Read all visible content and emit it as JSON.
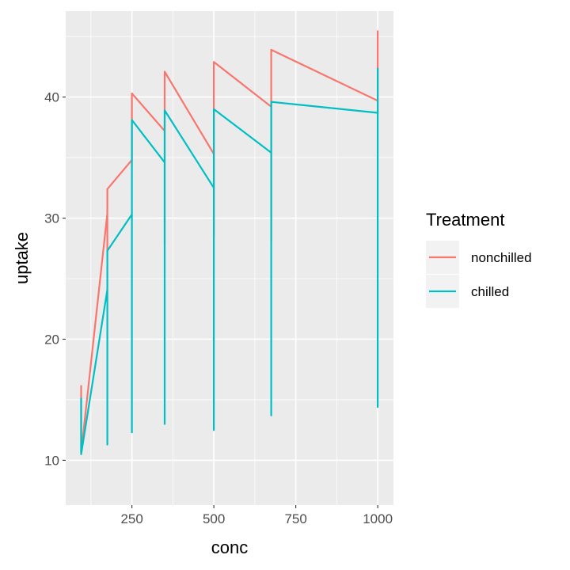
{
  "chart_data": {
    "type": "line",
    "title": "",
    "xlabel": "conc",
    "ylabel": "uptake",
    "xlim": [
      48,
      1048
    ],
    "ylim": [
      6.3,
      47.1
    ],
    "x_ticks": [
      250,
      500,
      750,
      1000
    ],
    "x_tick_labels": [
      "250",
      "500",
      "750",
      "1000"
    ],
    "x_minor_ticks": [
      125,
      375,
      625,
      875
    ],
    "y_ticks": [
      10,
      20,
      30,
      40
    ],
    "y_tick_labels": [
      "10",
      "20",
      "30",
      "40"
    ],
    "y_minor_ticks": [
      15,
      25,
      35,
      45
    ],
    "grid": true,
    "legend": {
      "title": "Treatment",
      "position": "right"
    },
    "series": [
      {
        "name": "nonchilled",
        "color": "#F8766D",
        "x": [
          95,
          95,
          95,
          175,
          175,
          175,
          250,
          250,
          250,
          350,
          350,
          350,
          500,
          500,
          500,
          675,
          675,
          675,
          1000,
          1000,
          1000
        ],
        "y": [
          16.2,
          13.6,
          10.6,
          30.4,
          27.3,
          32.4,
          34.8,
          37.1,
          40.3,
          37.2,
          27.9,
          42.1,
          35.3,
          28.5,
          42.9,
          39.2,
          28.1,
          43.9,
          39.7,
          38.6,
          45.5
        ]
      },
      {
        "name": "chilled",
        "color": "#00BFC4",
        "x": [
          95,
          95,
          95,
          175,
          175,
          175,
          250,
          250,
          250,
          350,
          350,
          350,
          500,
          500,
          500,
          675,
          675,
          675,
          1000,
          1000,
          1000
        ],
        "y": [
          14.2,
          15.1,
          10.5,
          24.1,
          11.3,
          27.3,
          30.3,
          12.3,
          38.1,
          34.6,
          13.0,
          38.9,
          32.5,
          12.5,
          39.0,
          35.4,
          13.7,
          39.6,
          38.7,
          14.4,
          42.4
        ]
      }
    ]
  }
}
